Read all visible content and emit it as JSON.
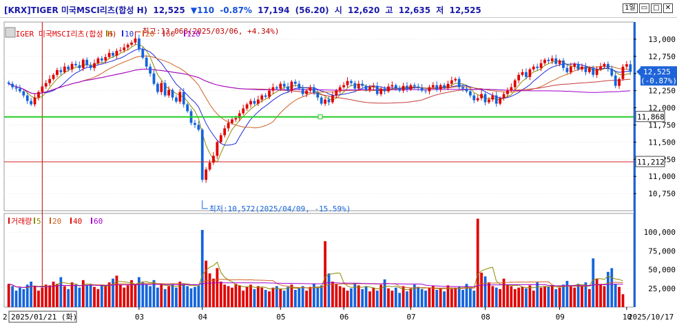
{
  "header": {
    "ticker": "[KRX]TIGER 미국MSCI리츠(합성 H)",
    "last": "12,525",
    "change": "▼110",
    "change_pct": "-0.87%",
    "volume": "17,194",
    "volume_ratio": "(56.20)",
    "open_label": "시",
    "open": "12,620",
    "high_label": "고",
    "high": "12,635",
    "low_label": "저",
    "low": "12,525",
    "period_button": "1일",
    "down_color": "#1450dc"
  },
  "chart_data": [
    {
      "type": "candlestick",
      "title": "TIGER 미국MSCI리츠(합성 H)",
      "legend": [
        {
          "label": "TIGER 미국MSCI리츠(합성 H)",
          "color": "#e00000"
        },
        {
          "label": "5",
          "color": "#8a8a00"
        },
        {
          "label": "10",
          "color": "#1e2ad8"
        },
        {
          "label": "20",
          "color": "#d06020"
        },
        {
          "label": "60",
          "color": "#c43a3a"
        },
        {
          "label": "120",
          "color": "#a000d0"
        }
      ],
      "y_ticks": [
        "13,000",
        "12,750",
        "12,500",
        "12,250",
        "12,000",
        "11,750",
        "11,500",
        "11,250",
        "11,000",
        "10,750"
      ],
      "ylim": [
        10500,
        13250
      ],
      "x_ticks": [
        "2",
        "03",
        "04",
        "05",
        "06",
        "07",
        "08",
        "09",
        "10"
      ],
      "x_tick_index": [
        0,
        35,
        52,
        73,
        90,
        108,
        128,
        148,
        166
      ],
      "current_price": 12525,
      "current_box": [
        "12,525",
        "(-0.87%)"
      ],
      "hline_green": 11868,
      "hline_green_label": "11,868",
      "hline_red": 11212,
      "hline_red_label": "11,212",
      "annotation_high": "최고:13,068(2025/03/06, +4.34%)",
      "annotation_low": "최저:10,572(2025/04/09, -15.59%)",
      "high_value": 13068,
      "low_value": 10572,
      "close": [
        12350,
        12300,
        12280,
        12240,
        12180,
        12100,
        12050,
        12150,
        12230,
        12310,
        12360,
        12420,
        12480,
        12550,
        12520,
        12600,
        12560,
        12640,
        12620,
        12580,
        12700,
        12620,
        12580,
        12650,
        12720,
        12690,
        12740,
        12800,
        12760,
        12830,
        12840,
        12880,
        12920,
        12950,
        13010,
        12860,
        12730,
        12600,
        12500,
        12350,
        12230,
        12360,
        12180,
        12260,
        12150,
        12090,
        12230,
        12050,
        11950,
        11780,
        11750,
        11680,
        10950,
        11100,
        11200,
        11300,
        11500,
        11600,
        11700,
        11780,
        11830,
        11850,
        11920,
        11990,
        12050,
        12100,
        12060,
        12120,
        12180,
        12160,
        12250,
        12300,
        12280,
        12350,
        12310,
        12250,
        12380,
        12350,
        12280,
        12200,
        12250,
        12300,
        12220,
        12150,
        12060,
        12120,
        12080,
        12180,
        12250,
        12300,
        12330,
        12390,
        12360,
        12280,
        12350,
        12320,
        12260,
        12300,
        12320,
        12200,
        12280,
        12240,
        12310,
        12330,
        12290,
        12250,
        12320,
        12270,
        12330,
        12310,
        12290,
        12250,
        12240,
        12300,
        12330,
        12270,
        12330,
        12290,
        12350,
        12400,
        12420,
        12300,
        12280,
        12240,
        12180,
        12110,
        12140,
        12200,
        12080,
        12120,
        12180,
        12060,
        12140,
        12200,
        12250,
        12300,
        12400,
        12480,
        12520,
        12450,
        12560,
        12600,
        12580,
        12650,
        12700,
        12680,
        12720,
        12640,
        12690,
        12580,
        12520,
        12600,
        12640,
        12560,
        12600,
        12520,
        12580,
        12480,
        12560,
        12600,
        12640,
        12570,
        12470,
        12320,
        12420,
        12600,
        12635,
        12525
      ],
      "volume_panel": {
        "legend": [
          {
            "label": "거래량",
            "color": "#e00000"
          },
          {
            "label": "5",
            "color": "#8a8a00"
          },
          {
            "label": "20",
            "color": "#d06020"
          },
          {
            "label": "40",
            "color": "#e00000"
          },
          {
            "label": "60",
            "color": "#a000d0"
          }
        ],
        "y_ticks": [
          "100,000",
          "75,000",
          "50,000",
          "25,000"
        ],
        "ylim": [
          0,
          125000
        ],
        "values": [
          31000,
          28000,
          22000,
          26000,
          24000,
          30000,
          34000,
          28000,
          22000,
          26000,
          30000,
          29000,
          34000,
          31000,
          40000,
          28000,
          24000,
          33000,
          30000,
          26000,
          36000,
          29000,
          31000,
          27000,
          24000,
          30000,
          28000,
          33000,
          38000,
          42000,
          30000,
          26000,
          29000,
          36000,
          31000,
          40000,
          33000,
          30000,
          28000,
          36000,
          26000,
          31000,
          24000,
          28000,
          30000,
          26000,
          34000,
          31000,
          28000,
          25000,
          27000,
          29000,
          103000,
          62000,
          45000,
          38000,
          52000,
          34000,
          30000,
          28000,
          26000,
          31000,
          29000,
          22000,
          27000,
          30000,
          24000,
          28000,
          26000,
          23000,
          21000,
          26000,
          28000,
          24000,
          22000,
          27000,
          30000,
          23000,
          25000,
          28000,
          22000,
          27000,
          31000,
          26000,
          29000,
          88000,
          45000,
          34000,
          31000,
          28000,
          26000,
          22000,
          25000,
          32000,
          29000,
          24000,
          28000,
          21000,
          26000,
          22000,
          30000,
          37000,
          25000,
          22000,
          26000,
          19000,
          28000,
          21000,
          25000,
          30000,
          27000,
          24000,
          22000,
          26000,
          28000,
          23000,
          25000,
          21000,
          29000,
          24000,
          26000,
          27000,
          23000,
          31000,
          25000,
          22000,
          118000,
          46000,
          41000,
          33000,
          28000,
          26000,
          24000,
          38000,
          30000,
          28000,
          24000,
          26000,
          27000,
          25000,
          29000,
          22000,
          33000,
          26000,
          28000,
          27000,
          29000,
          24000,
          26000,
          30000,
          35000,
          28000,
          26000,
          31000,
          29000,
          33000,
          24000,
          65000,
          38000,
          30000,
          28000,
          47000,
          52000,
          31000,
          27000,
          17194
        ],
        "date_label": "2025/01/21 (화)",
        "right_date": "2025/10/17"
      }
    }
  ]
}
